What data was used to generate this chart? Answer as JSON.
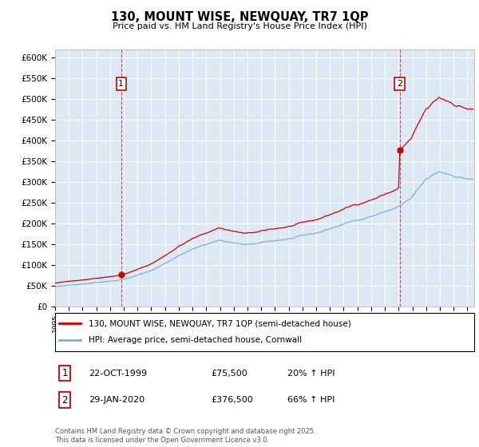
{
  "title": "130, MOUNT WISE, NEWQUAY, TR7 1QP",
  "subtitle": "Price paid vs. HM Land Registry's House Price Index (HPI)",
  "ylabel_ticks": [
    "£0",
    "£50K",
    "£100K",
    "£150K",
    "£200K",
    "£250K",
    "£300K",
    "£350K",
    "£400K",
    "£450K",
    "£500K",
    "£550K",
    "£600K"
  ],
  "ytick_values": [
    0,
    50000,
    100000,
    150000,
    200000,
    250000,
    300000,
    350000,
    400000,
    450000,
    500000,
    550000,
    600000
  ],
  "ylim": [
    0,
    620000
  ],
  "xlim_start": 1995.0,
  "xlim_end": 2025.5,
  "purchase1_year": 1999.81,
  "purchase1_price": 75500,
  "purchase2_year": 2020.08,
  "purchase2_price": 376500,
  "line1_label": "130, MOUNT WISE, NEWQUAY, TR7 1QP (semi-detached house)",
  "line2_label": "HPI: Average price, semi-detached house, Cornwall",
  "annotation1": [
    "1",
    "22-OCT-1999",
    "£75,500",
    "20% ↑ HPI"
  ],
  "annotation2": [
    "2",
    "29-JAN-2020",
    "£376,500",
    "66% ↑ HPI"
  ],
  "footer": "Contains HM Land Registry data © Crown copyright and database right 2025.\nThis data is licensed under the Open Government Licence v3.0.",
  "red_color": "#cc0000",
  "blue_color": "#7ab0d4",
  "vline_color": "#cc0000",
  "bg_color": "#ffffff",
  "plot_bg_color": "#dce9f5",
  "grid_color": "#ffffff"
}
